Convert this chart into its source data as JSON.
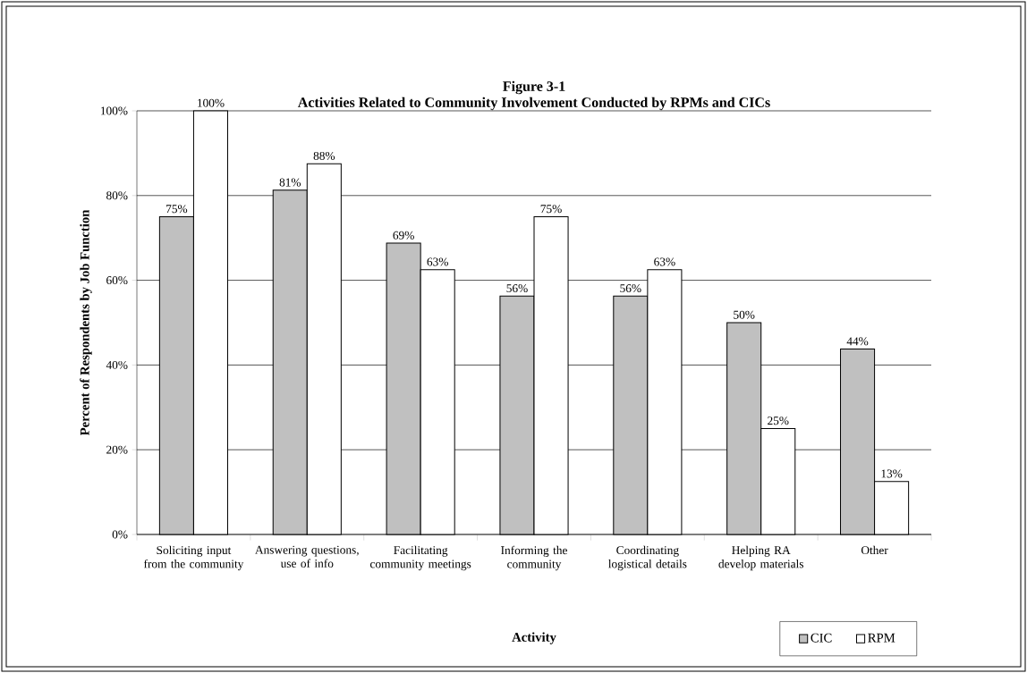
{
  "chart_data": {
    "type": "bar",
    "title": "Figure 3-1",
    "subtitle": "Activities Related to Community Involvement Conducted by RPMs and CICs",
    "xlabel": "Activity",
    "ylabel": "Percent of Respondents by Job Function",
    "categories": [
      "Soliciting input from the community",
      "Answering questions, use of info",
      "Facilitating community meetings",
      "Informing the community",
      "Coordinating logistical details",
      "Helping RA develop materials",
      "Other"
    ],
    "series": [
      {
        "name": "CIC",
        "color": "#c0c0c0",
        "values": [
          75,
          81.25,
          68.75,
          56.25,
          56.25,
          50,
          43.75
        ],
        "value_labels": [
          "75%",
          "81%",
          "69%",
          "56%",
          "56%",
          "50%",
          "44%"
        ]
      },
      {
        "name": "RPM",
        "color": "#ffffff",
        "values": [
          100,
          87.5,
          62.5,
          75,
          62.5,
          25,
          12.5
        ],
        "value_labels": [
          "100%",
          "88%",
          "63%",
          "75%",
          "63%",
          "25%",
          "13%"
        ]
      }
    ],
    "ylim": [
      0,
      100
    ],
    "yticks": [
      {
        "value": 0,
        "label": "0%"
      },
      {
        "value": 20,
        "label": "20%"
      },
      {
        "value": 40,
        "label": "40%"
      },
      {
        "value": 60,
        "label": "60%"
      },
      {
        "value": 80,
        "label": "80%"
      },
      {
        "value": 100,
        "label": "100%"
      }
    ],
    "grid": "y",
    "legend": "bottom right"
  }
}
